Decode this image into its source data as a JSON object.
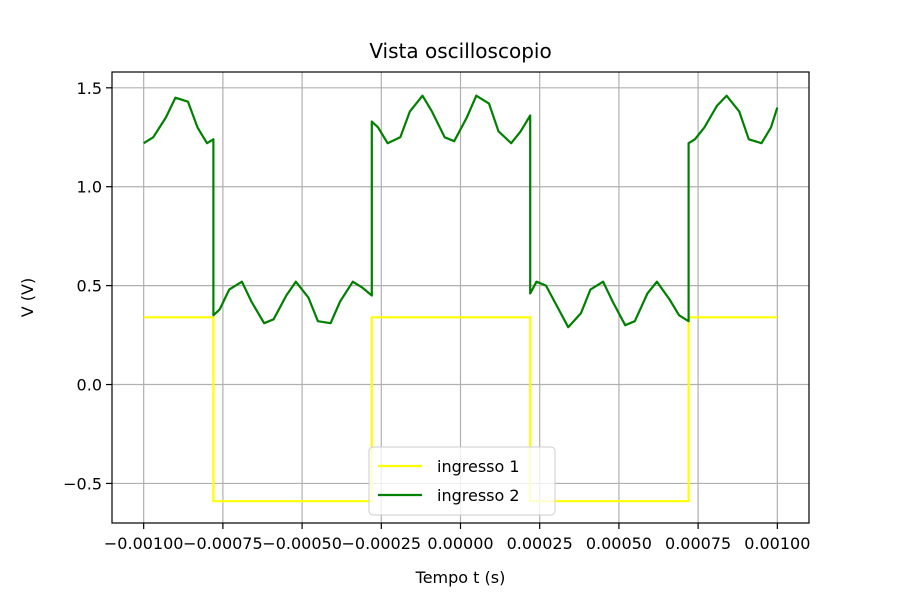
{
  "chart_data": {
    "type": "line",
    "title": "Vista oscilloscopio",
    "xlabel": "Tempo t (s)",
    "ylabel": "V (V)",
    "xlim": [
      -0.0011,
      0.0011
    ],
    "ylim": [
      -0.7,
      1.58
    ],
    "grid": true,
    "legend_position": "lower-center",
    "x_ticks": [
      -0.001,
      -0.00075,
      -0.0005,
      -0.00025,
      0.0,
      0.00025,
      0.0005,
      0.00075,
      0.001
    ],
    "x_tick_labels": [
      "−0.00100",
      "−0.00075",
      "−0.00050",
      "−0.00025",
      "0.00000",
      "0.00025",
      "0.00050",
      "0.00075",
      "0.00100"
    ],
    "y_ticks": [
      -0.5,
      0.0,
      0.5,
      1.0,
      1.5
    ],
    "y_tick_labels": [
      "−0.5",
      "0.0",
      "0.5",
      "1.0",
      "1.5"
    ],
    "series": [
      {
        "name": "ingresso 1",
        "color": "#ffff00",
        "x": [
          -0.001,
          -0.00078,
          -0.00078,
          -0.00028,
          -0.00028,
          0.00022,
          0.00022,
          0.00072,
          0.00072,
          0.001
        ],
        "y": [
          0.34,
          0.34,
          -0.59,
          -0.59,
          0.34,
          0.34,
          -0.59,
          -0.59,
          0.34,
          0.34
        ]
      },
      {
        "name": "ingresso 2",
        "color": "#008000",
        "x": [
          -0.001,
          -0.00097,
          -0.00093,
          -0.0009,
          -0.00086,
          -0.00083,
          -0.0008,
          -0.00078,
          -0.00078,
          -0.00076,
          -0.00073,
          -0.00069,
          -0.00066,
          -0.00062,
          -0.00059,
          -0.00055,
          -0.00052,
          -0.00048,
          -0.00045,
          -0.00041,
          -0.00038,
          -0.00034,
          -0.00031,
          -0.00028,
          -0.00028,
          -0.00026,
          -0.00023,
          -0.00019,
          -0.00016,
          -0.00012,
          -9e-05,
          -5e-05,
          -2e-05,
          2e-05,
          5e-05,
          9e-05,
          0.00012,
          0.00016,
          0.00019,
          0.00022,
          0.00022,
          0.00024,
          0.00027,
          0.00031,
          0.00034,
          0.00038,
          0.00041,
          0.00045,
          0.00048,
          0.00052,
          0.00055,
          0.00059,
          0.00062,
          0.00066,
          0.00069,
          0.00072,
          0.00072,
          0.00074,
          0.00077,
          0.00081,
          0.00084,
          0.00088,
          0.00091,
          0.00095,
          0.00098,
          0.001
        ],
        "y": [
          1.22,
          1.25,
          1.35,
          1.45,
          1.43,
          1.3,
          1.22,
          1.24,
          0.35,
          0.38,
          0.48,
          0.52,
          0.42,
          0.31,
          0.33,
          0.45,
          0.52,
          0.44,
          0.32,
          0.31,
          0.42,
          0.52,
          0.49,
          0.45,
          1.33,
          1.3,
          1.22,
          1.25,
          1.38,
          1.46,
          1.38,
          1.25,
          1.23,
          1.35,
          1.46,
          1.42,
          1.28,
          1.22,
          1.28,
          1.36,
          0.46,
          0.52,
          0.5,
          0.38,
          0.29,
          0.36,
          0.48,
          0.52,
          0.42,
          0.3,
          0.32,
          0.46,
          0.52,
          0.43,
          0.35,
          0.32,
          1.22,
          1.24,
          1.3,
          1.41,
          1.46,
          1.38,
          1.24,
          1.22,
          1.3,
          1.4
        ]
      }
    ]
  }
}
